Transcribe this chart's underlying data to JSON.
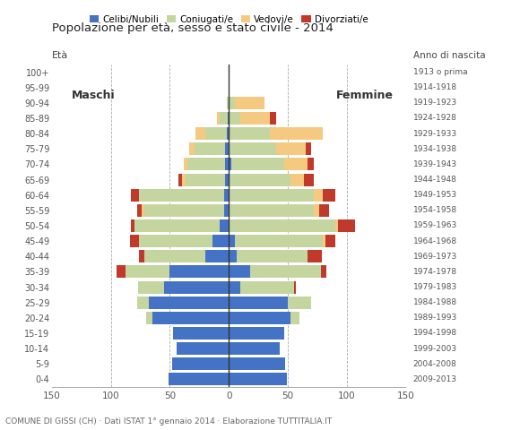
{
  "age_groups": [
    "0-4",
    "5-9",
    "10-14",
    "15-19",
    "20-24",
    "25-29",
    "30-34",
    "35-39",
    "40-44",
    "45-49",
    "50-54",
    "55-59",
    "60-64",
    "65-69",
    "70-74",
    "75-79",
    "80-84",
    "85-89",
    "90-94",
    "95-99",
    "100+"
  ],
  "birth_years": [
    "2009-2013",
    "2004-2008",
    "1999-2003",
    "1994-1998",
    "1989-1993",
    "1984-1988",
    "1979-1983",
    "1974-1978",
    "1969-1973",
    "1964-1968",
    "1959-1963",
    "1954-1958",
    "1949-1953",
    "1944-1948",
    "1939-1943",
    "1934-1938",
    "1929-1933",
    "1924-1928",
    "1919-1923",
    "1914-1918",
    "1913 o prima"
  ],
  "males": {
    "celibi": [
      51,
      48,
      44,
      47,
      65,
      68,
      55,
      50,
      20,
      14,
      8,
      4,
      4,
      3,
      3,
      3,
      2,
      1,
      0,
      0,
      0
    ],
    "coniugati": [
      0,
      0,
      0,
      0,
      5,
      10,
      22,
      38,
      52,
      62,
      72,
      68,
      72,
      34,
      32,
      26,
      18,
      7,
      2,
      0,
      0
    ],
    "vedovi": [
      0,
      0,
      0,
      0,
      0,
      0,
      0,
      0,
      0,
      0,
      0,
      2,
      0,
      3,
      3,
      5,
      8,
      2,
      0,
      0,
      0
    ],
    "divorziati": [
      0,
      0,
      0,
      0,
      0,
      0,
      0,
      7,
      4,
      8,
      3,
      4,
      7,
      3,
      0,
      0,
      0,
      0,
      0,
      0,
      0
    ]
  },
  "females": {
    "celibi": [
      49,
      48,
      43,
      47,
      52,
      50,
      10,
      18,
      7,
      5,
      0,
      0,
      0,
      0,
      2,
      0,
      0,
      0,
      0,
      0,
      0
    ],
    "coniugati": [
      0,
      0,
      0,
      0,
      8,
      20,
      45,
      60,
      60,
      75,
      90,
      72,
      72,
      52,
      45,
      40,
      35,
      10,
      5,
      0,
      0
    ],
    "vedovi": [
      0,
      0,
      0,
      0,
      0,
      0,
      0,
      0,
      0,
      2,
      3,
      5,
      8,
      12,
      20,
      25,
      45,
      25,
      25,
      0,
      0
    ],
    "divorziati": [
      0,
      0,
      0,
      0,
      0,
      0,
      2,
      5,
      12,
      8,
      14,
      8,
      10,
      8,
      5,
      5,
      0,
      5,
      0,
      0,
      0
    ]
  },
  "color_celibi": "#4472C4",
  "color_coniugati": "#C5D5A0",
  "color_vedovi": "#F5C97F",
  "color_divorziati": "#C0392B",
  "xlim": 150,
  "title": "Popolazione per età, sesso e stato civile - 2014",
  "subtitle": "COMUNE DI GISSI (CH) · Dati ISTAT 1° gennaio 2014 · Elaborazione TUTTITALIA.IT",
  "ylabel_left": "Età",
  "ylabel_right": "Anno di nascita",
  "label_maschi": "Maschi",
  "label_femmine": "Femmine",
  "legend_celibi": "Celibi/Nubili",
  "legend_coniugati": "Coniugati/e",
  "legend_vedovi": "Vedovi/e",
  "legend_divorziati": "Divorziati/e"
}
